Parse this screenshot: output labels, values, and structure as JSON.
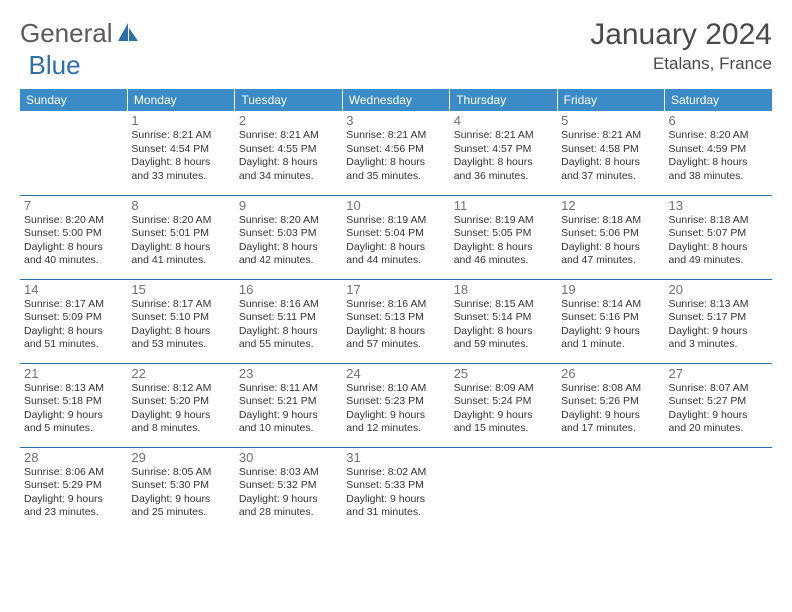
{
  "logo": {
    "part1": "General",
    "part2": "Blue"
  },
  "title": "January 2024",
  "location": "Etalans, France",
  "header_bg": "#3b8bc7",
  "rule_color": "#2f6fa8",
  "days_of_week": [
    "Sunday",
    "Monday",
    "Tuesday",
    "Wednesday",
    "Thursday",
    "Friday",
    "Saturday"
  ],
  "weeks": [
    [
      null,
      {
        "n": "1",
        "sr": "Sunrise: 8:21 AM",
        "ss": "Sunset: 4:54 PM",
        "d1": "Daylight: 8 hours",
        "d2": "and 33 minutes."
      },
      {
        "n": "2",
        "sr": "Sunrise: 8:21 AM",
        "ss": "Sunset: 4:55 PM",
        "d1": "Daylight: 8 hours",
        "d2": "and 34 minutes."
      },
      {
        "n": "3",
        "sr": "Sunrise: 8:21 AM",
        "ss": "Sunset: 4:56 PM",
        "d1": "Daylight: 8 hours",
        "d2": "and 35 minutes."
      },
      {
        "n": "4",
        "sr": "Sunrise: 8:21 AM",
        "ss": "Sunset: 4:57 PM",
        "d1": "Daylight: 8 hours",
        "d2": "and 36 minutes."
      },
      {
        "n": "5",
        "sr": "Sunrise: 8:21 AM",
        "ss": "Sunset: 4:58 PM",
        "d1": "Daylight: 8 hours",
        "d2": "and 37 minutes."
      },
      {
        "n": "6",
        "sr": "Sunrise: 8:20 AM",
        "ss": "Sunset: 4:59 PM",
        "d1": "Daylight: 8 hours",
        "d2": "and 38 minutes."
      }
    ],
    [
      {
        "n": "7",
        "sr": "Sunrise: 8:20 AM",
        "ss": "Sunset: 5:00 PM",
        "d1": "Daylight: 8 hours",
        "d2": "and 40 minutes."
      },
      {
        "n": "8",
        "sr": "Sunrise: 8:20 AM",
        "ss": "Sunset: 5:01 PM",
        "d1": "Daylight: 8 hours",
        "d2": "and 41 minutes."
      },
      {
        "n": "9",
        "sr": "Sunrise: 8:20 AM",
        "ss": "Sunset: 5:03 PM",
        "d1": "Daylight: 8 hours",
        "d2": "and 42 minutes."
      },
      {
        "n": "10",
        "sr": "Sunrise: 8:19 AM",
        "ss": "Sunset: 5:04 PM",
        "d1": "Daylight: 8 hours",
        "d2": "and 44 minutes."
      },
      {
        "n": "11",
        "sr": "Sunrise: 8:19 AM",
        "ss": "Sunset: 5:05 PM",
        "d1": "Daylight: 8 hours",
        "d2": "and 46 minutes."
      },
      {
        "n": "12",
        "sr": "Sunrise: 8:18 AM",
        "ss": "Sunset: 5:06 PM",
        "d1": "Daylight: 8 hours",
        "d2": "and 47 minutes."
      },
      {
        "n": "13",
        "sr": "Sunrise: 8:18 AM",
        "ss": "Sunset: 5:07 PM",
        "d1": "Daylight: 8 hours",
        "d2": "and 49 minutes."
      }
    ],
    [
      {
        "n": "14",
        "sr": "Sunrise: 8:17 AM",
        "ss": "Sunset: 5:09 PM",
        "d1": "Daylight: 8 hours",
        "d2": "and 51 minutes."
      },
      {
        "n": "15",
        "sr": "Sunrise: 8:17 AM",
        "ss": "Sunset: 5:10 PM",
        "d1": "Daylight: 8 hours",
        "d2": "and 53 minutes."
      },
      {
        "n": "16",
        "sr": "Sunrise: 8:16 AM",
        "ss": "Sunset: 5:11 PM",
        "d1": "Daylight: 8 hours",
        "d2": "and 55 minutes."
      },
      {
        "n": "17",
        "sr": "Sunrise: 8:16 AM",
        "ss": "Sunset: 5:13 PM",
        "d1": "Daylight: 8 hours",
        "d2": "and 57 minutes."
      },
      {
        "n": "18",
        "sr": "Sunrise: 8:15 AM",
        "ss": "Sunset: 5:14 PM",
        "d1": "Daylight: 8 hours",
        "d2": "and 59 minutes."
      },
      {
        "n": "19",
        "sr": "Sunrise: 8:14 AM",
        "ss": "Sunset: 5:16 PM",
        "d1": "Daylight: 9 hours",
        "d2": "and 1 minute."
      },
      {
        "n": "20",
        "sr": "Sunrise: 8:13 AM",
        "ss": "Sunset: 5:17 PM",
        "d1": "Daylight: 9 hours",
        "d2": "and 3 minutes."
      }
    ],
    [
      {
        "n": "21",
        "sr": "Sunrise: 8:13 AM",
        "ss": "Sunset: 5:18 PM",
        "d1": "Daylight: 9 hours",
        "d2": "and 5 minutes."
      },
      {
        "n": "22",
        "sr": "Sunrise: 8:12 AM",
        "ss": "Sunset: 5:20 PM",
        "d1": "Daylight: 9 hours",
        "d2": "and 8 minutes."
      },
      {
        "n": "23",
        "sr": "Sunrise: 8:11 AM",
        "ss": "Sunset: 5:21 PM",
        "d1": "Daylight: 9 hours",
        "d2": "and 10 minutes."
      },
      {
        "n": "24",
        "sr": "Sunrise: 8:10 AM",
        "ss": "Sunset: 5:23 PM",
        "d1": "Daylight: 9 hours",
        "d2": "and 12 minutes."
      },
      {
        "n": "25",
        "sr": "Sunrise: 8:09 AM",
        "ss": "Sunset: 5:24 PM",
        "d1": "Daylight: 9 hours",
        "d2": "and 15 minutes."
      },
      {
        "n": "26",
        "sr": "Sunrise: 8:08 AM",
        "ss": "Sunset: 5:26 PM",
        "d1": "Daylight: 9 hours",
        "d2": "and 17 minutes."
      },
      {
        "n": "27",
        "sr": "Sunrise: 8:07 AM",
        "ss": "Sunset: 5:27 PM",
        "d1": "Daylight: 9 hours",
        "d2": "and 20 minutes."
      }
    ],
    [
      {
        "n": "28",
        "sr": "Sunrise: 8:06 AM",
        "ss": "Sunset: 5:29 PM",
        "d1": "Daylight: 9 hours",
        "d2": "and 23 minutes."
      },
      {
        "n": "29",
        "sr": "Sunrise: 8:05 AM",
        "ss": "Sunset: 5:30 PM",
        "d1": "Daylight: 9 hours",
        "d2": "and 25 minutes."
      },
      {
        "n": "30",
        "sr": "Sunrise: 8:03 AM",
        "ss": "Sunset: 5:32 PM",
        "d1": "Daylight: 9 hours",
        "d2": "and 28 minutes."
      },
      {
        "n": "31",
        "sr": "Sunrise: 8:02 AM",
        "ss": "Sunset: 5:33 PM",
        "d1": "Daylight: 9 hours",
        "d2": "and 31 minutes."
      },
      null,
      null,
      null
    ]
  ]
}
